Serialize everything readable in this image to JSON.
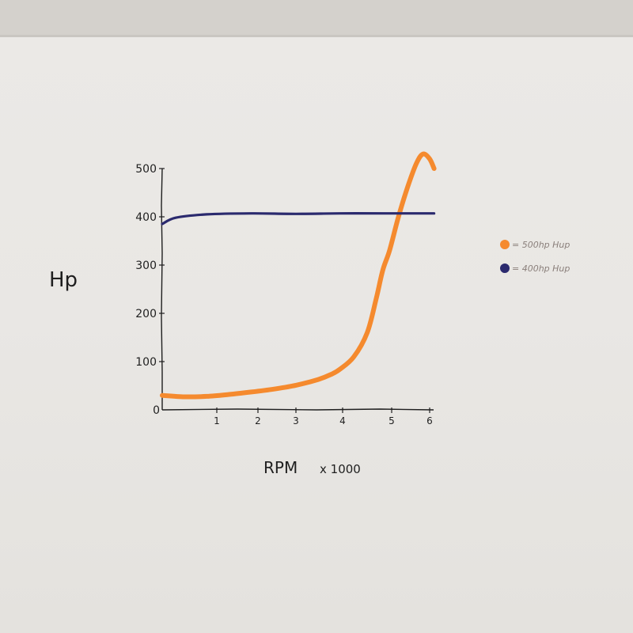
{
  "chart_data": {
    "type": "line",
    "title": "",
    "xlabel": "RPM",
    "xlabel_suffix": "x 1000",
    "ylabel": "Hp",
    "xlim": [
      0,
      6
    ],
    "ylim": [
      0,
      500
    ],
    "x_ticks": [
      "1",
      "2",
      "3",
      "4",
      "5",
      "6"
    ],
    "y_ticks": [
      "0",
      "100",
      "200",
      "300",
      "400",
      "500"
    ],
    "grid": false,
    "legend_position": "right",
    "series": [
      {
        "name": "= 500hp Hup",
        "color": "#f58a2e",
        "x": [
          0,
          0.5,
          1,
          1.5,
          2,
          2.5,
          3,
          3.5,
          3.8,
          4,
          4.3,
          4.6,
          4.8,
          4.95,
          5.1,
          5.3,
          5.5,
          5.7,
          5.85,
          6.0,
          6.1
        ],
        "y": [
          30,
          27,
          28,
          32,
          37,
          43,
          51,
          63,
          74,
          85,
          110,
          160,
          230,
          290,
          330,
          400,
          460,
          510,
          530,
          520,
          500
        ]
      },
      {
        "name": "= 400hp Hup",
        "color": "#2b2a6e",
        "x": [
          0,
          0.3,
          1,
          2,
          3,
          4,
          5,
          6.1
        ],
        "y": [
          385,
          398,
          405,
          407,
          406,
          407,
          407,
          407
        ]
      }
    ]
  }
}
